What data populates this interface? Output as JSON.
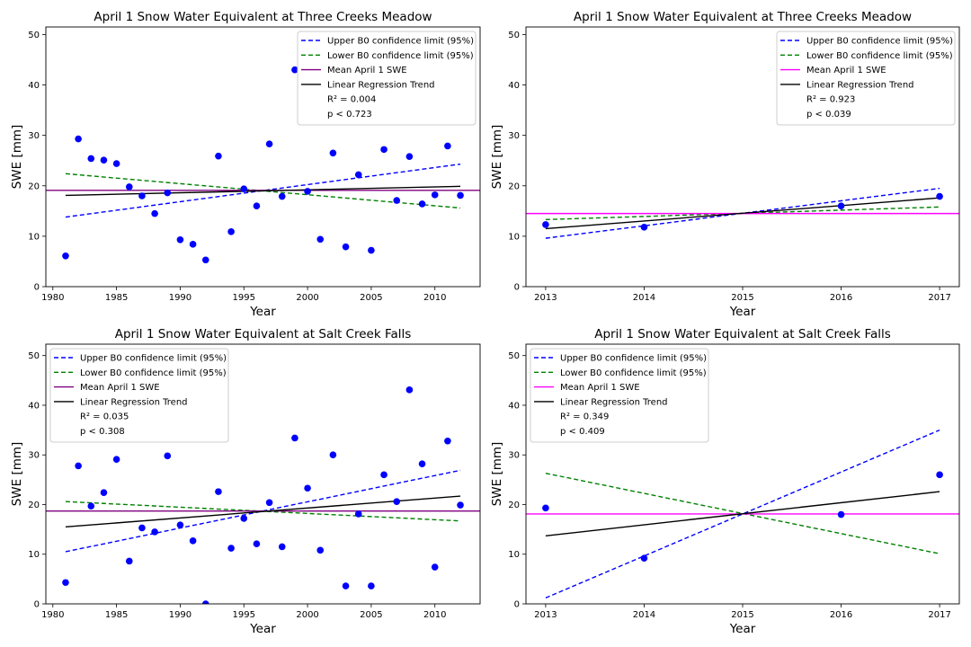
{
  "chart_data": [
    {
      "type": "scatter",
      "title": "April 1 Snow Water Equivalent at Three Creeks Meadow",
      "xlabel": "Year",
      "ylabel": "SWE [mm]",
      "xlim": [
        1979.45,
        2013.55
      ],
      "ylim": [
        0,
        51.5
      ],
      "xticks": [
        1980,
        1985,
        1990,
        1995,
        2000,
        2005,
        2010
      ],
      "yticks": [
        0,
        10,
        20,
        30,
        40,
        50
      ],
      "points": {
        "x": [
          1981,
          1982,
          1983,
          1984,
          1985,
          1986,
          1987,
          1988,
          1989,
          1990,
          1991,
          1992,
          1993,
          1994,
          1995,
          1996,
          1997,
          1998,
          1999,
          2000,
          2001,
          2002,
          2003,
          2004,
          2005,
          2006,
          2007,
          2008,
          2009,
          2010,
          2011,
          2012
        ],
        "y": [
          6.1,
          29.3,
          25.4,
          25.1,
          24.4,
          19.8,
          18.0,
          14.5,
          18.6,
          9.3,
          8.4,
          5.3,
          25.9,
          10.9,
          19.4,
          16.0,
          28.3,
          17.9,
          43.0,
          18.9,
          9.4,
          26.5,
          7.9,
          22.2,
          7.2,
          27.2,
          17.1,
          25.8,
          16.4,
          18.2,
          27.9,
          18.1
        ]
      },
      "lines": [
        {
          "name": "Upper B0 confidence limit (95%)",
          "style": "dashed",
          "color": "#0000ff",
          "x": [
            1981,
            2012
          ],
          "y": [
            13.8,
            24.3
          ]
        },
        {
          "name": "Lower B0 confidence limit (95%)",
          "style": "dashed",
          "color": "#008000",
          "x": [
            1981,
            2012
          ],
          "y": [
            22.4,
            15.6
          ]
        },
        {
          "name": "Mean April 1 SWE",
          "style": "solid",
          "color": "#800080",
          "hline": 19.1
        },
        {
          "name": "Linear Regression Trend",
          "style": "solid",
          "color": "#000000",
          "x": [
            1981,
            2012
          ],
          "y": [
            18.1,
            19.9
          ]
        }
      ],
      "stats": [
        "R² = 0.004",
        "p < 0.723"
      ],
      "legend": "upper-right",
      "grid": false
    },
    {
      "type": "scatter",
      "title": "April 1 Snow Water Equivalent at Three Creeks Meadow",
      "xlabel": "Year",
      "ylabel": "SWE [mm]",
      "xlim": [
        2012.8,
        2017.2
      ],
      "ylim": [
        0,
        51.5
      ],
      "xticks": [
        2013,
        2014,
        2015,
        2016,
        2017
      ],
      "yticks": [
        0,
        10,
        20,
        30,
        40,
        50
      ],
      "points": {
        "x": [
          2013,
          2014,
          2016,
          2017
        ],
        "y": [
          12.3,
          11.8,
          16.0,
          17.9
        ]
      },
      "lines": [
        {
          "name": "Upper B0 confidence limit (95%)",
          "style": "dashed",
          "color": "#0000ff",
          "x": [
            2013,
            2017
          ],
          "y": [
            9.6,
            19.5
          ]
        },
        {
          "name": "Lower B0 confidence limit (95%)",
          "style": "dashed",
          "color": "#008000",
          "x": [
            2013,
            2017
          ],
          "y": [
            13.3,
            15.8
          ]
        },
        {
          "name": "Mean April 1 SWE",
          "style": "solid",
          "color": "#ff00ff",
          "hline": 14.5
        },
        {
          "name": "Linear Regression Trend",
          "style": "solid",
          "color": "#000000",
          "x": [
            2013,
            2017
          ],
          "y": [
            11.5,
            17.6
          ]
        }
      ],
      "stats": [
        "R² = 0.923",
        "p < 0.039"
      ],
      "legend": "upper-right",
      "grid": false
    },
    {
      "type": "scatter",
      "title": "April 1 Snow Water Equivalent at Salt Creek Falls",
      "xlabel": "Year",
      "ylabel": "SWE [mm]",
      "xlim": [
        1979.45,
        2013.55
      ],
      "ylim": [
        0,
        52.3
      ],
      "xticks": [
        1980,
        1985,
        1990,
        1995,
        2000,
        2005,
        2010
      ],
      "yticks": [
        0,
        10,
        20,
        30,
        40,
        50
      ],
      "points": {
        "x": [
          1981,
          1982,
          1983,
          1984,
          1985,
          1986,
          1987,
          1988,
          1989,
          1990,
          1991,
          1992,
          1993,
          1994,
          1995,
          1996,
          1997,
          1998,
          1999,
          2000,
          2001,
          2002,
          2003,
          2004,
          2005,
          2006,
          2007,
          2008,
          2009,
          2010,
          2011,
          2012
        ],
        "y": [
          4.3,
          27.8,
          19.7,
          22.4,
          29.1,
          8.6,
          15.3,
          14.5,
          29.8,
          15.9,
          12.7,
          0.0,
          22.6,
          11.2,
          17.2,
          12.1,
          20.4,
          11.5,
          33.4,
          23.3,
          10.8,
          30.0,
          3.6,
          18.1,
          3.6,
          26.0,
          20.6,
          43.1,
          28.2,
          7.4,
          32.8,
          19.9
        ]
      },
      "lines": [
        {
          "name": "Upper B0 confidence limit (95%)",
          "style": "dashed",
          "color": "#0000ff",
          "x": [
            1981,
            2012
          ],
          "y": [
            10.5,
            26.9
          ]
        },
        {
          "name": "Lower B0 confidence limit (95%)",
          "style": "dashed",
          "color": "#008000",
          "x": [
            1981,
            2012
          ],
          "y": [
            20.6,
            16.7
          ]
        },
        {
          "name": "Mean April 1 SWE",
          "style": "solid",
          "color": "#800080",
          "hline": 18.7
        },
        {
          "name": "Linear Regression Trend",
          "style": "solid",
          "color": "#000000",
          "x": [
            1981,
            2012
          ],
          "y": [
            15.5,
            21.7
          ]
        }
      ],
      "stats": [
        "R² = 0.035",
        "p < 0.308"
      ],
      "legend": "upper-left",
      "grid": false
    },
    {
      "type": "scatter",
      "title": "April 1 Snow Water Equivalent at Salt Creek Falls",
      "xlabel": "Year",
      "ylabel": "SWE [mm]",
      "xlim": [
        2012.8,
        2017.2
      ],
      "ylim": [
        0,
        52.3
      ],
      "xticks": [
        2013,
        2014,
        2015,
        2016,
        2017
      ],
      "yticks": [
        0,
        10,
        20,
        30,
        40,
        50
      ],
      "points": {
        "x": [
          2013,
          2014,
          2016,
          2017
        ],
        "y": [
          19.3,
          9.2,
          18.0,
          26.0
        ]
      },
      "lines": [
        {
          "name": "Upper B0 confidence limit (95%)",
          "style": "dashed",
          "color": "#0000ff",
          "x": [
            2013,
            2017
          ],
          "y": [
            1.2,
            35.0
          ]
        },
        {
          "name": "Lower B0 confidence limit (95%)",
          "style": "dashed",
          "color": "#008000",
          "x": [
            2013,
            2017
          ],
          "y": [
            26.3,
            10.1
          ]
        },
        {
          "name": "Mean April 1 SWE",
          "style": "solid",
          "color": "#ff00ff",
          "hline": 18.1
        },
        {
          "name": "Linear Regression Trend",
          "style": "solid",
          "color": "#000000",
          "x": [
            2013,
            2017
          ],
          "y": [
            13.7,
            22.6
          ]
        }
      ],
      "stats": [
        "R² = 0.349",
        "p < 0.409"
      ],
      "legend": "upper-left",
      "grid": false
    }
  ],
  "colors": {
    "points": "#0000ff",
    "axis": "#000000",
    "legend_border": "#cccccc"
  }
}
